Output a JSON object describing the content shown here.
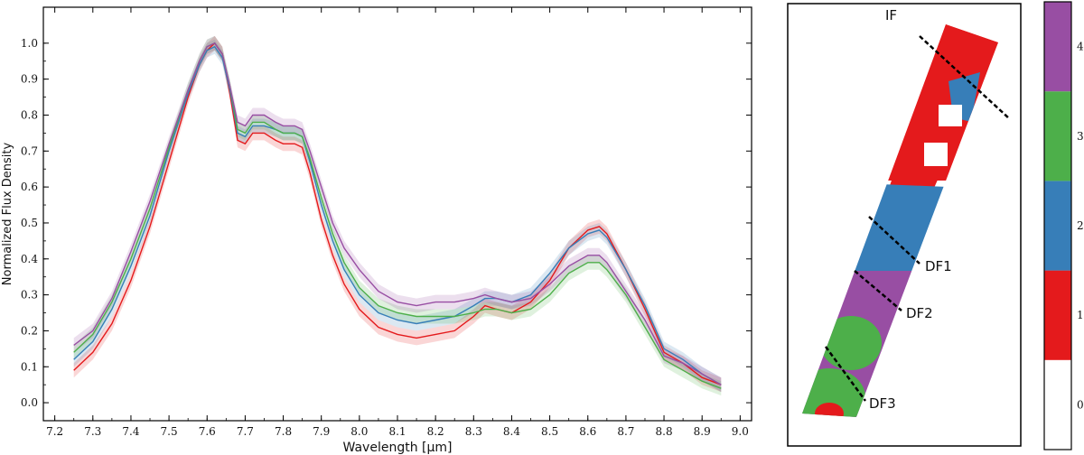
{
  "chart_data": [
    {
      "type": "line",
      "xlabel": "Wavelength [μm]",
      "ylabel": "Normalized Flux Density",
      "xlim": [
        7.17,
        9.03
      ],
      "ylim": [
        -0.05,
        1.1
      ],
      "xticks": [
        "7.2",
        "7.3",
        "7.4",
        "7.5",
        "7.6",
        "7.7",
        "7.8",
        "7.9",
        "8.0",
        "8.1",
        "8.2",
        "8.3",
        "8.4",
        "8.5",
        "8.6",
        "8.7",
        "8.8",
        "8.9",
        "9.0"
      ],
      "yticks": [
        "0.0",
        "0.1",
        "0.2",
        "0.3",
        "0.4",
        "0.5",
        "0.6",
        "0.7",
        "0.8",
        "0.9",
        "1.0"
      ],
      "grid": false,
      "series": [
        {
          "color": "#e41a1c",
          "x": [
            7.25,
            7.3,
            7.35,
            7.4,
            7.45,
            7.5,
            7.55,
            7.58,
            7.6,
            7.62,
            7.64,
            7.66,
            7.68,
            7.7,
            7.72,
            7.75,
            7.78,
            7.8,
            7.83,
            7.85,
            7.87,
            7.9,
            7.93,
            7.96,
            8.0,
            8.05,
            8.1,
            8.15,
            8.2,
            8.25,
            8.3,
            8.33,
            8.36,
            8.4,
            8.45,
            8.5,
            8.55,
            8.6,
            8.63,
            8.65,
            8.7,
            8.75,
            8.8,
            8.85,
            8.9,
            8.95
          ],
          "y": [
            0.09,
            0.14,
            0.22,
            0.34,
            0.49,
            0.67,
            0.85,
            0.94,
            0.98,
            1.0,
            0.97,
            0.86,
            0.73,
            0.72,
            0.75,
            0.75,
            0.73,
            0.72,
            0.72,
            0.71,
            0.64,
            0.51,
            0.41,
            0.33,
            0.26,
            0.21,
            0.19,
            0.18,
            0.19,
            0.2,
            0.24,
            0.27,
            0.26,
            0.25,
            0.28,
            0.34,
            0.43,
            0.48,
            0.49,
            0.47,
            0.37,
            0.26,
            0.14,
            0.11,
            0.07,
            0.05
          ]
        },
        {
          "color": "#377eb8",
          "x": [
            7.25,
            7.3,
            7.35,
            7.4,
            7.45,
            7.5,
            7.55,
            7.58,
            7.6,
            7.62,
            7.64,
            7.66,
            7.68,
            7.7,
            7.72,
            7.75,
            7.78,
            7.8,
            7.83,
            7.85,
            7.87,
            7.9,
            7.93,
            7.96,
            8.0,
            8.05,
            8.1,
            8.15,
            8.2,
            8.25,
            8.3,
            8.33,
            8.36,
            8.4,
            8.45,
            8.5,
            8.55,
            8.6,
            8.63,
            8.65,
            8.7,
            8.75,
            8.8,
            8.85,
            8.9,
            8.95
          ],
          "y": [
            0.12,
            0.17,
            0.26,
            0.38,
            0.52,
            0.7,
            0.86,
            0.94,
            0.98,
            0.99,
            0.96,
            0.87,
            0.75,
            0.74,
            0.77,
            0.77,
            0.76,
            0.75,
            0.75,
            0.74,
            0.67,
            0.55,
            0.45,
            0.37,
            0.3,
            0.25,
            0.23,
            0.22,
            0.23,
            0.24,
            0.27,
            0.29,
            0.29,
            0.28,
            0.3,
            0.36,
            0.43,
            0.47,
            0.48,
            0.46,
            0.37,
            0.27,
            0.15,
            0.12,
            0.08,
            0.05
          ]
        },
        {
          "color": "#4daf4a",
          "x": [
            7.25,
            7.3,
            7.35,
            7.4,
            7.45,
            7.5,
            7.55,
            7.58,
            7.6,
            7.62,
            7.64,
            7.66,
            7.68,
            7.7,
            7.72,
            7.75,
            7.78,
            7.8,
            7.83,
            7.85,
            7.87,
            7.9,
            7.93,
            7.96,
            8.0,
            8.05,
            8.1,
            8.15,
            8.2,
            8.25,
            8.3,
            8.33,
            8.36,
            8.4,
            8.45,
            8.5,
            8.55,
            8.6,
            8.63,
            8.65,
            8.7,
            8.75,
            8.8,
            8.85,
            8.9,
            8.95
          ],
          "y": [
            0.14,
            0.19,
            0.28,
            0.4,
            0.54,
            0.71,
            0.87,
            0.95,
            0.99,
            1.0,
            0.97,
            0.88,
            0.76,
            0.75,
            0.78,
            0.78,
            0.76,
            0.75,
            0.75,
            0.74,
            0.68,
            0.57,
            0.47,
            0.39,
            0.32,
            0.27,
            0.25,
            0.24,
            0.24,
            0.24,
            0.25,
            0.26,
            0.26,
            0.25,
            0.26,
            0.3,
            0.36,
            0.39,
            0.39,
            0.37,
            0.3,
            0.21,
            0.12,
            0.09,
            0.06,
            0.04
          ]
        },
        {
          "color": "#984ea3",
          "x": [
            7.25,
            7.3,
            7.35,
            7.4,
            7.45,
            7.5,
            7.55,
            7.58,
            7.6,
            7.62,
            7.64,
            7.66,
            7.68,
            7.7,
            7.72,
            7.75,
            7.78,
            7.8,
            7.83,
            7.85,
            7.87,
            7.9,
            7.93,
            7.96,
            8.0,
            8.05,
            8.1,
            8.15,
            8.2,
            8.25,
            8.3,
            8.33,
            8.36,
            8.4,
            8.45,
            8.5,
            8.55,
            8.6,
            8.63,
            8.65,
            8.7,
            8.75,
            8.8,
            8.85,
            8.9,
            8.95
          ],
          "y": [
            0.16,
            0.2,
            0.29,
            0.42,
            0.56,
            0.72,
            0.87,
            0.95,
            0.99,
            1.0,
            0.97,
            0.88,
            0.78,
            0.77,
            0.8,
            0.8,
            0.78,
            0.77,
            0.77,
            0.76,
            0.7,
            0.6,
            0.5,
            0.43,
            0.37,
            0.31,
            0.28,
            0.27,
            0.28,
            0.28,
            0.29,
            0.3,
            0.29,
            0.28,
            0.29,
            0.33,
            0.38,
            0.41,
            0.41,
            0.39,
            0.31,
            0.23,
            0.13,
            0.11,
            0.08,
            0.05
          ]
        }
      ]
    },
    {
      "type": "heatmap",
      "annotations": [
        "IF",
        "DF1",
        "DF2",
        "DF3"
      ],
      "colorbar": {
        "ticks": [
          "0",
          "1",
          "2",
          "3",
          "4"
        ],
        "colors": [
          "#ffffff",
          "#e41a1c",
          "#377eb8",
          "#4daf4a",
          "#984ea3"
        ]
      }
    }
  ]
}
